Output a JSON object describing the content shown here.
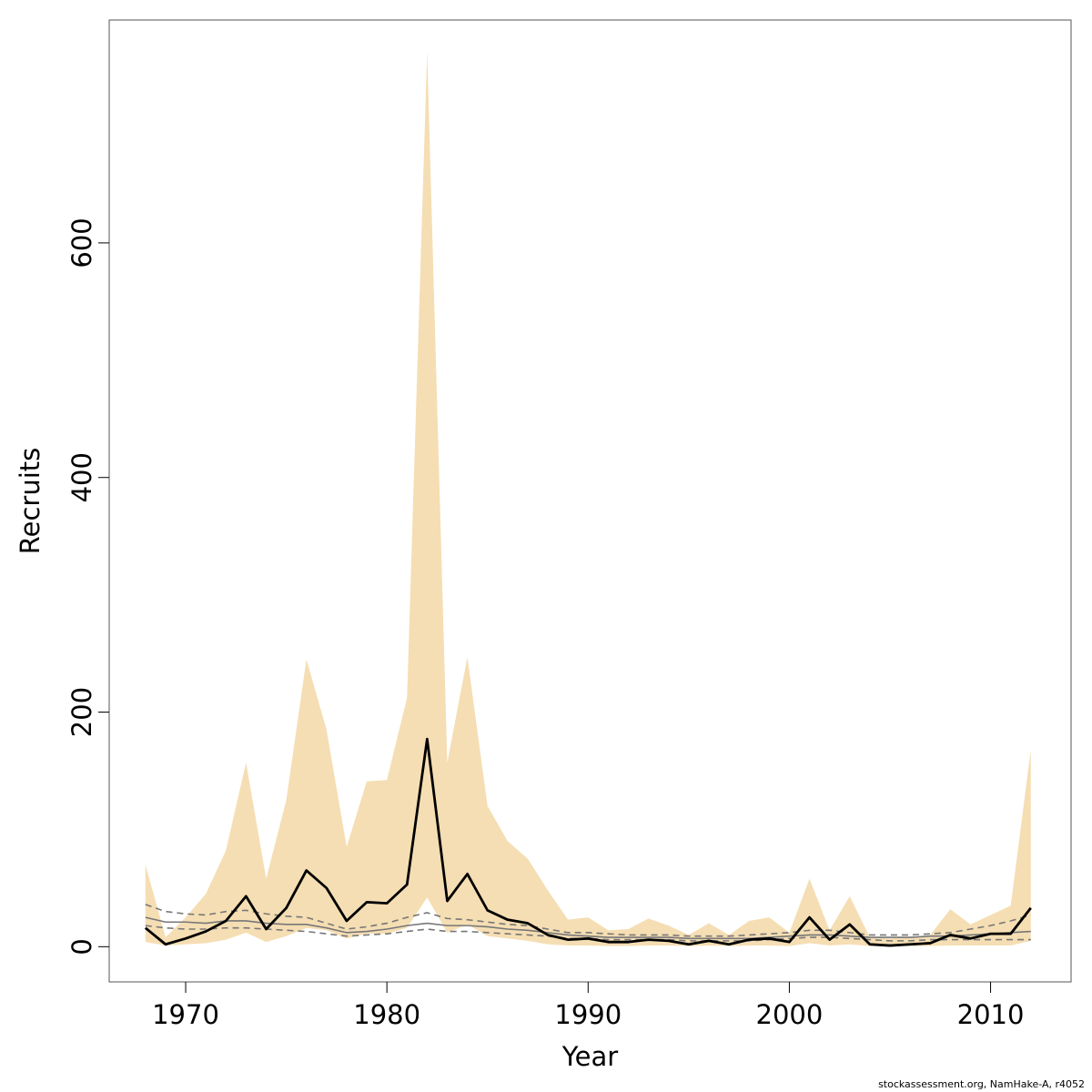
{
  "chart_data": {
    "type": "area",
    "xlabel": "Year",
    "ylabel": "Recruits",
    "xlim": [
      1966.2,
      2014.0
    ],
    "ylim": [
      -30,
      790
    ],
    "x_ticks": [
      1970,
      1980,
      1990,
      2000,
      2010
    ],
    "y_ticks": [
      0,
      200,
      400,
      600
    ],
    "grid": false,
    "colors": {
      "band": "#f5deb3",
      "estimate": "#000000",
      "median": "#777777",
      "quantiles": "#777777",
      "axis": "#000000",
      "frame": "#555555"
    },
    "x": [
      1968,
      1969,
      1970,
      1971,
      1972,
      1973,
      1974,
      1975,
      1976,
      1977,
      1978,
      1979,
      1980,
      1981,
      1982,
      1983,
      1984,
      1985,
      1986,
      1987,
      1988,
      1989,
      1990,
      1991,
      1992,
      1993,
      1994,
      1995,
      1996,
      1997,
      1998,
      1999,
      2000,
      2001,
      2002,
      2003,
      2004,
      2005,
      2006,
      2007,
      2008,
      2009,
      2010,
      2011,
      2012
    ],
    "series": [
      {
        "role": "band_upper",
        "values": [
          70,
          8,
          25,
          45,
          82,
          157,
          58,
          125,
          245,
          185,
          85,
          141,
          142,
          212,
          763,
          157,
          247,
          120,
          90,
          75,
          48,
          23,
          25,
          14,
          15,
          24,
          18,
          10,
          20,
          10,
          22,
          25,
          12,
          58,
          14,
          43,
          8,
          7,
          8,
          10,
          32,
          19,
          27,
          35,
          168
        ]
      },
      {
        "role": "band_lower",
        "values": [
          4,
          1,
          2,
          3,
          6,
          12,
          4,
          9,
          16,
          14,
          7,
          11,
          11,
          16,
          42,
          12,
          19,
          9,
          7,
          5,
          2,
          1,
          1,
          0.5,
          0.5,
          1,
          1,
          0.5,
          1,
          0.5,
          1,
          1,
          0.5,
          3,
          1,
          2,
          0.5,
          0.5,
          0.5,
          0.5,
          1,
          1,
          1,
          1,
          5
        ]
      },
      {
        "role": "estimate",
        "values": [
          16,
          2,
          7,
          13,
          22,
          43,
          15,
          33,
          65,
          50,
          22,
          38,
          37,
          53,
          177,
          39,
          62,
          31,
          23,
          20,
          10,
          6,
          7,
          4,
          4,
          6,
          5,
          2,
          5,
          2,
          6,
          7,
          4,
          25,
          6,
          19,
          2,
          1,
          2,
          3,
          10,
          7,
          11,
          11,
          33
        ]
      },
      {
        "role": "median",
        "values": [
          25,
          21,
          21,
          20,
          22,
          22,
          20,
          19,
          19,
          16,
          12,
          13,
          15,
          18,
          20,
          18,
          18,
          17,
          15,
          14,
          12,
          10,
          9,
          8,
          8,
          8,
          8,
          7,
          7,
          7,
          7,
          8,
          9,
          10,
          10,
          9,
          8,
          8,
          8,
          9,
          9,
          10,
          11,
          12,
          13
        ]
      },
      {
        "role": "upper_quantile",
        "values": [
          36,
          30,
          28,
          27,
          30,
          31,
          28,
          26,
          25,
          20,
          15,
          17,
          20,
          25,
          29,
          24,
          23,
          21,
          19,
          18,
          15,
          12,
          12,
          11,
          10,
          10,
          10,
          9,
          9,
          9,
          10,
          11,
          12,
          14,
          14,
          12,
          10,
          10,
          10,
          11,
          12,
          15,
          18,
          22,
          27
        ]
      },
      {
        "role": "lower_quantile",
        "values": [
          18,
          16,
          15,
          15,
          16,
          16,
          15,
          14,
          13,
          11,
          9,
          10,
          11,
          13,
          15,
          13,
          13,
          12,
          11,
          10,
          9,
          7,
          7,
          6,
          6,
          6,
          6,
          5,
          5,
          5,
          5,
          6,
          7,
          8,
          8,
          7,
          6,
          5,
          5,
          6,
          6,
          6,
          6,
          6,
          6
        ]
      }
    ]
  },
  "footer": {
    "credit": "stockassessment.org, NamHake-A, r4052"
  }
}
